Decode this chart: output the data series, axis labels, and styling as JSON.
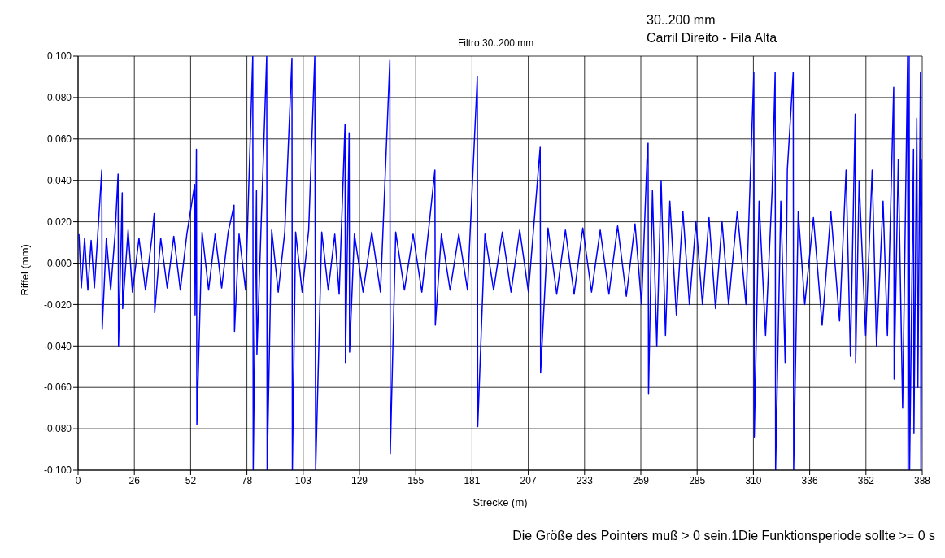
{
  "chart_data": {
    "type": "line",
    "title": "Filtro 30..200 mm",
    "xlabel": "Strecke (m)",
    "ylabel": "Riffel (mm)",
    "annotations": [
      "30..200 mm",
      "Carril Direito - Fila Alta",
      "Die Größe des Pointers muß > 0 sein.1Die Funktionsperiode sollte >= 0 s"
    ],
    "x": [
      0.4,
      1.5,
      3,
      4.5,
      6,
      7.5,
      9,
      10.9,
      11.1,
      13,
      15,
      17,
      18.4,
      18.6,
      20.3,
      20.5,
      23,
      25,
      28,
      31,
      34,
      35,
      35.2,
      38,
      41,
      44,
      47,
      50,
      53.6,
      53.8,
      54.4,
      54.6,
      57,
      60,
      63,
      66,
      69,
      71.7,
      71.9,
      74,
      77,
      80.3,
      80.5,
      82,
      82.2,
      84,
      86.7,
      86.9,
      89,
      92,
      95,
      98.3,
      98.5,
      100,
      103,
      106,
      108.8,
      109.2,
      112,
      115,
      118,
      120,
      122.7,
      122.9,
      124.6,
      124.8,
      127,
      131,
      135,
      139,
      143.3,
      143.5,
      146,
      150,
      154,
      158,
      161,
      164,
      164.2,
      167,
      171,
      175,
      179,
      183.5,
      183.7,
      187,
      191,
      195,
      199,
      203,
      207,
      212.4,
      212.6,
      216,
      220,
      224,
      228,
      232,
      236,
      240,
      244,
      248,
      252,
      256,
      259,
      261.5,
      262,
      262.2,
      264,
      266,
      268,
      270,
      272,
      275,
      278,
      281,
      284,
      287,
      290,
      293,
      296,
      299,
      303,
      307,
      310.6,
      310.8,
      313,
      316,
      319,
      320.4,
      320.6,
      323,
      325,
      326,
      328.7,
      328.9,
      331,
      334,
      338,
      342,
      346,
      350,
      353,
      355,
      357.2,
      357.4,
      359,
      362,
      365,
      367,
      370,
      372,
      374.9,
      375.1,
      377,
      379,
      381.3,
      381.5,
      382,
      382.2,
      384,
      384.2,
      385.5,
      386,
      387.2,
      387.4,
      388
    ],
    "series": [
      {
        "color": "#0000ff",
        "values": [
          0.014,
          -0.012,
          0.012,
          -0.013,
          0.011,
          -0.012,
          0.013,
          0.045,
          -0.032,
          0.012,
          -0.013,
          0.014,
          0.043,
          -0.04,
          0.034,
          -0.022,
          0.016,
          -0.014,
          0.012,
          -0.013,
          0.013,
          0.024,
          -0.024,
          0.012,
          -0.012,
          0.013,
          -0.013,
          0.014,
          0.038,
          -0.025,
          0.055,
          -0.078,
          0.015,
          -0.013,
          0.014,
          -0.012,
          0.015,
          0.028,
          -0.033,
          0.014,
          -0.013,
          0.1,
          -0.1,
          0.035,
          -0.044,
          0.014,
          0.1,
          -0.1,
          0.016,
          -0.014,
          0.015,
          0.099,
          -0.1,
          0.015,
          -0.014,
          0.016,
          0.1,
          -0.1,
          0.015,
          -0.013,
          0.014,
          -0.015,
          0.067,
          -0.048,
          0.063,
          -0.043,
          0.014,
          -0.014,
          0.015,
          -0.014,
          0.098,
          -0.092,
          0.015,
          -0.013,
          0.014,
          -0.014,
          0.015,
          0.045,
          -0.03,
          0.014,
          -0.013,
          0.014,
          -0.013,
          0.09,
          -0.079,
          0.014,
          -0.013,
          0.015,
          -0.014,
          0.016,
          -0.014,
          0.056,
          -0.053,
          0.017,
          -0.015,
          0.016,
          -0.015,
          0.017,
          -0.014,
          0.016,
          -0.015,
          0.018,
          -0.016,
          0.019,
          -0.02,
          0.05,
          0.058,
          -0.063,
          0.035,
          -0.04,
          0.04,
          -0.035,
          0.03,
          -0.025,
          0.025,
          -0.02,
          0.02,
          -0.02,
          0.022,
          -0.022,
          0.02,
          -0.02,
          0.025,
          -0.02,
          0.092,
          -0.084,
          0.03,
          -0.035,
          0.035,
          0.092,
          -0.1,
          0.03,
          -0.048,
          0.045,
          0.092,
          -0.1,
          0.025,
          -0.02,
          0.022,
          -0.03,
          0.025,
          -0.028,
          0.045,
          -0.045,
          0.072,
          -0.048,
          0.04,
          -0.035,
          0.045,
          -0.04,
          0.03,
          -0.035,
          0.085,
          -0.056,
          0.05,
          -0.07,
          0.1,
          -0.1,
          0.1,
          -0.1,
          0.055,
          -0.082,
          0.07,
          -0.06,
          0.092,
          -0.1,
          0.05
        ]
      }
    ],
    "xlim": [
      0,
      388
    ],
    "xticks": [
      0,
      {
        "value": 25.867,
        "label": "26"
      },
      {
        "value": 51.733,
        "label": "52"
      },
      {
        "value": 77.6,
        "label": "78"
      },
      {
        "value": 103.467,
        "label": "103"
      },
      {
        "value": 129.333,
        "label": "129"
      },
      {
        "value": 155.2,
        "label": "155"
      },
      {
        "value": 181.067,
        "label": "181"
      },
      {
        "value": 206.933,
        "label": "207"
      },
      {
        "value": 232.8,
        "label": "233"
      },
      {
        "value": 258.667,
        "label": "259"
      },
      {
        "value": 284.533,
        "label": "285"
      },
      {
        "value": 310.4,
        "label": "310"
      },
      {
        "value": 336.267,
        "label": "336"
      },
      {
        "value": 362.133,
        "label": "362"
      },
      388
    ],
    "ylim": [
      -0.1,
      0.1
    ],
    "yticks": [
      {
        "value": -0.1,
        "label": "-0,100"
      },
      {
        "value": -0.08,
        "label": "-0,080"
      },
      {
        "value": -0.06,
        "label": "-0,060"
      },
      {
        "value": -0.04,
        "label": "-0,040"
      },
      {
        "value": -0.02,
        "label": "-0,020"
      },
      {
        "value": 0,
        "label": "0,000"
      },
      {
        "value": 0.02,
        "label": "0,020"
      },
      {
        "value": 0.04,
        "label": "0,040"
      },
      {
        "value": 0.06,
        "label": "0,060"
      },
      {
        "value": 0.08,
        "label": "0,080"
      },
      {
        "value": 0.1,
        "label": "0,100"
      }
    ],
    "grid": true,
    "legend": false,
    "line_style": "solid"
  }
}
